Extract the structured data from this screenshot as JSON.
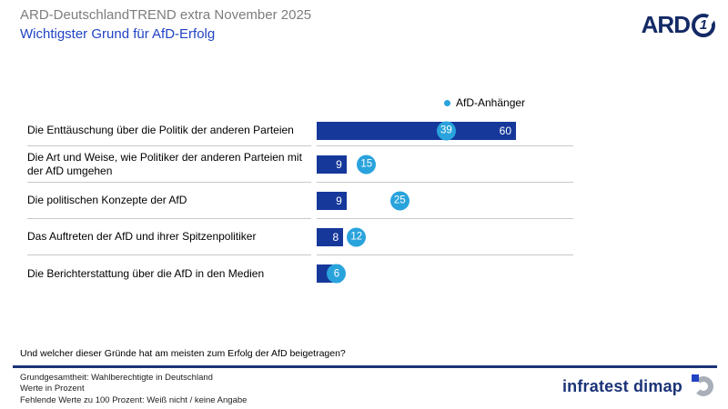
{
  "header": {
    "title": "ARD-DeutschlandTREND extra November 2025",
    "subtitle": "Wichtigster Grund für AfD-Erfolg",
    "ard_logo_text": "ARD",
    "ard_logo_one": "1"
  },
  "legend": {
    "label": "AfD-Anhänger"
  },
  "chart_data": {
    "type": "bar",
    "orientation": "horizontal",
    "title": "Wichtigster Grund für AfD-Erfolg",
    "unit": "Prozent",
    "xlim": [
      0,
      60
    ],
    "grid": false,
    "legend_position": "top-right-of-plot",
    "categories": [
      "Die Enttäuschung über die Politik der anderen Parteien",
      "Die Art und Weise, wie Politiker der anderen Parteien mit der AfD umgehen",
      "Die politischen Konzepte der AfD",
      "Das Auftreten der AfD und ihrer Spitzenpolitiker",
      "Die Berichterstattung über die AfD in den Medien"
    ],
    "series": [
      {
        "name": "bars",
        "style": "bar",
        "values": [
          60,
          9,
          9,
          8,
          7
        ],
        "value_labels": [
          "60",
          "9",
          "9",
          "8",
          ""
        ],
        "note": "last bar label hidden behind dot; value estimated from bar length"
      },
      {
        "name": "AfD-Anhänger",
        "style": "dot-badge",
        "values": [
          39,
          15,
          25,
          12,
          6
        ],
        "value_labels": [
          "39",
          "15",
          "25",
          "12",
          "6"
        ]
      }
    ]
  },
  "question": "Und welcher dieser Gründe hat am meisten zum Erfolg der AfD beigetragen?",
  "footer": {
    "lines": [
      "Grundgesamtheit: Wahlberechtigte in Deutschland",
      "Werte in Prozent",
      "Fehlende Werte zu 100 Prozent: Weiß nicht / keine Angabe"
    ],
    "brand": "infratest dimap"
  },
  "colors": {
    "bar": "#16389b",
    "dot": "#29a3dc",
    "subtitle": "#2143c4",
    "title_gray": "#7d7d7d",
    "ard_navy": "#142a66",
    "separator": "#c9c9c9",
    "footer_line": "#1b3478",
    "brand_gray": "#a9afb8"
  }
}
